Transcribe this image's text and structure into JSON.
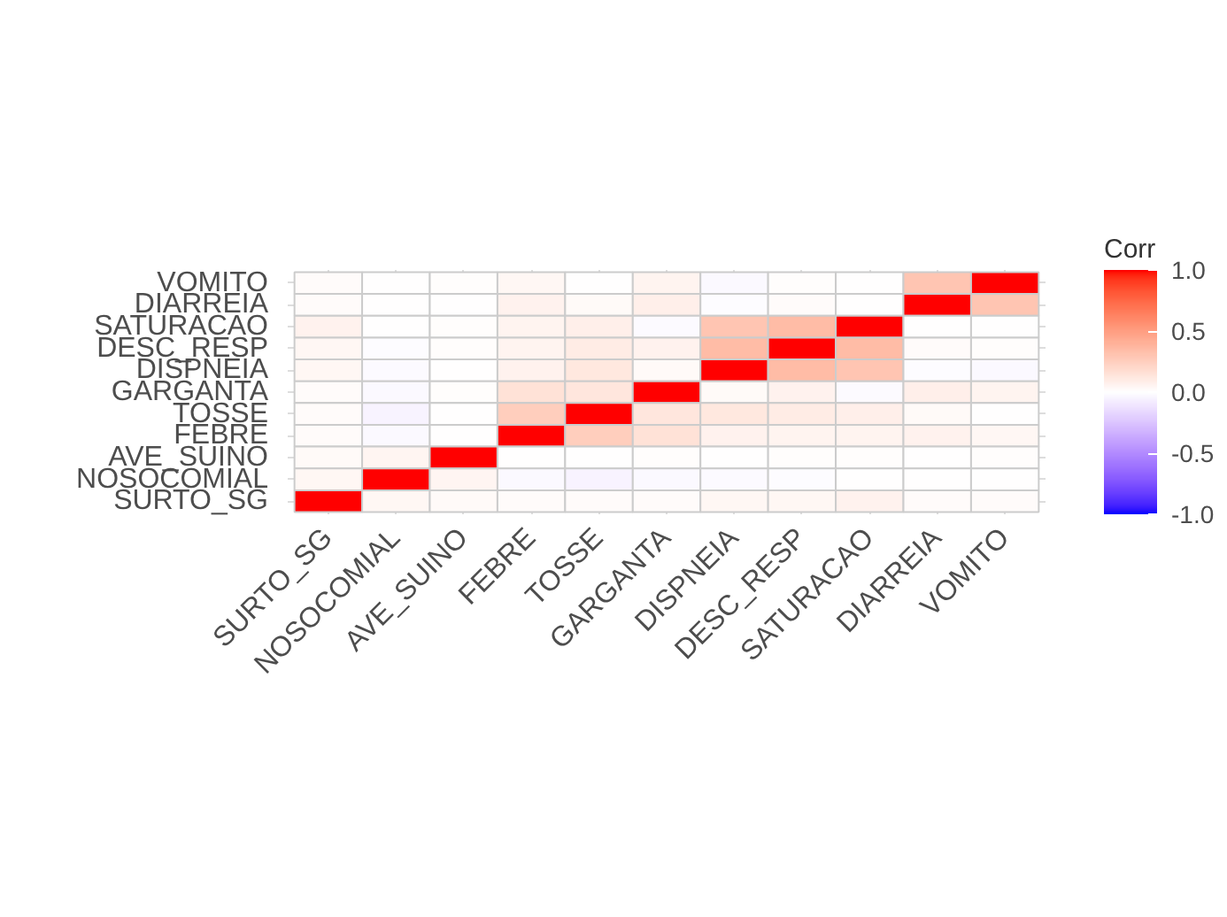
{
  "chart_data": {
    "type": "heatmap",
    "categories": [
      "SURTO_SG",
      "NOSOCOMIAL",
      "AVE_SUINO",
      "FEBRE",
      "TOSSE",
      "GARGANTA",
      "DISPNEIA",
      "DESC_RESP",
      "SATURACAO",
      "DIARREIA",
      "VOMITO"
    ],
    "y_categories": [
      "VOMITO",
      "DIARREIA",
      "SATURACAO",
      "DESC_RESP",
      "DISPNEIA",
      "GARGANTA",
      "TOSSE",
      "FEBRE",
      "AVE_SUINO",
      "NOSOCOMIAL",
      "SURTO_SG"
    ],
    "cells": [
      [
        0.02,
        0.0,
        0.01,
        0.04,
        0.0,
        0.06,
        -0.03,
        0.01,
        0.0,
        0.3,
        1
      ],
      [
        0.02,
        0.0,
        0.0,
        0.07,
        0.03,
        0.08,
        -0.01,
        0.02,
        0.0,
        1,
        0.3
      ],
      [
        0.07,
        0.0,
        0.01,
        0.06,
        0.08,
        -0.02,
        0.3,
        0.35,
        1,
        0.0,
        0.0
      ],
      [
        0.04,
        -0.01,
        0.01,
        0.06,
        0.1,
        0.07,
        0.35,
        1,
        0.35,
        0.02,
        0.01
      ],
      [
        0.04,
        -0.02,
        0.0,
        0.07,
        0.12,
        0.03,
        1,
        0.35,
        0.3,
        -0.01,
        -0.03
      ],
      [
        0.02,
        -0.03,
        0.01,
        0.15,
        0.13,
        1,
        0.03,
        0.07,
        -0.02,
        0.08,
        0.06
      ],
      [
        0.02,
        -0.05,
        0.0,
        0.25,
        1,
        0.13,
        0.12,
        0.1,
        0.08,
        0.03,
        0.0
      ],
      [
        0.02,
        -0.03,
        0.0,
        1,
        0.25,
        0.15,
        0.07,
        0.06,
        0.06,
        0.07,
        0.04
      ],
      [
        0.03,
        0.05,
        1,
        0.0,
        0.0,
        0.01,
        0.0,
        0.01,
        0.01,
        0.0,
        0.01
      ],
      [
        0.04,
        1,
        0.05,
        -0.03,
        -0.05,
        -0.03,
        -0.02,
        -0.01,
        0.0,
        0.0,
        0.0
      ],
      [
        1,
        0.04,
        0.03,
        0.02,
        0.02,
        0.02,
        0.04,
        0.04,
        0.07,
        0.02,
        0.02
      ]
    ],
    "colors": [
      "#0000ff",
      "#ffffff",
      "#ff0000"
    ],
    "clabel": "Corr",
    "clim": [
      -1,
      1
    ],
    "cticks": [
      {
        "value": 1,
        "label": "1.0"
      },
      {
        "value": 0.5,
        "label": "0.5"
      },
      {
        "value": 0,
        "label": "0.0"
      },
      {
        "value": -0.5,
        "label": "-0.5"
      },
      {
        "value": -1,
        "label": "-1.0"
      }
    ],
    "grid": true
  }
}
